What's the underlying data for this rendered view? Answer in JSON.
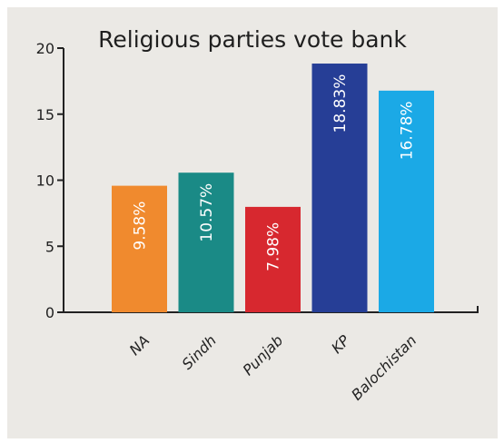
{
  "chart_data": {
    "type": "bar",
    "title": "Religious parties vote bank",
    "xlabel": "",
    "ylabel": "",
    "ylim": [
      0,
      20
    ],
    "yticks": [
      0,
      5,
      10,
      15,
      20
    ],
    "grid": false,
    "categories": [
      "NA",
      "Sindh",
      "Punjab",
      "KP",
      "Balochistan"
    ],
    "values": [
      9.58,
      10.57,
      7.98,
      18.83,
      16.78
    ],
    "data_labels": [
      "9.58%",
      "10.57%",
      "7.98%",
      "18.83%",
      "16.78%"
    ],
    "colors": [
      "#f08a2e",
      "#1a8a86",
      "#d7282f",
      "#263e96",
      "#1ba9e6"
    ],
    "background": "#ebe9e5"
  }
}
